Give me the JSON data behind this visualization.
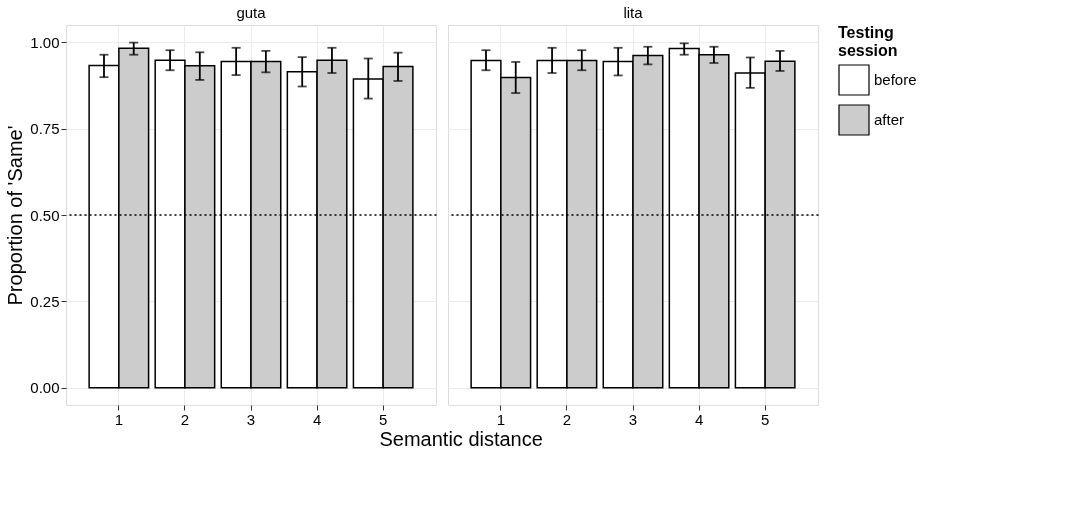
{
  "chart_data": [
    {
      "type": "bar",
      "title": "guta",
      "xlabel": "Semantic distance",
      "ylabel": "Proportion of 'Same'",
      "legend_title": "Testing session",
      "categories": [
        "1",
        "2",
        "3",
        "4",
        "5"
      ],
      "series": [
        {
          "name": "before",
          "color": "#ffffff",
          "values": [
            0.933,
            0.948,
            0.944,
            0.915,
            0.894
          ],
          "errors": [
            [
              0.899,
              0.964
            ],
            [
              0.919,
              0.977
            ],
            [
              0.905,
              0.984
            ],
            [
              0.872,
              0.957
            ],
            [
              0.837,
              0.953
            ]
          ]
        },
        {
          "name": "after",
          "color": "#cccccc",
          "values": [
            0.983,
            0.932,
            0.944,
            0.948,
            0.93
          ],
          "errors": [
            [
              0.964,
              0.999
            ],
            [
              0.891,
              0.971
            ],
            [
              0.913,
              0.975
            ],
            [
              0.911,
              0.984
            ],
            [
              0.888,
              0.97
            ]
          ]
        }
      ],
      "ylim": [
        -0.05,
        1.05
      ],
      "yticks": [
        {
          "value": 0,
          "label": "0.00"
        },
        {
          "value": 0.25,
          "label": "0.25"
        },
        {
          "value": 0.5,
          "label": "0.50"
        },
        {
          "value": 0.75,
          "label": "0.75"
        },
        {
          "value": 1,
          "label": "1.00"
        }
      ],
      "ref_lines": [
        {
          "axis": "y",
          "value": 0.5,
          "line_style": "dotted",
          "color": "#000000"
        }
      ],
      "grid": true,
      "legend": "right"
    },
    {
      "type": "bar",
      "title": "lita",
      "categories": [
        "1",
        "2",
        "3",
        "4",
        "5"
      ],
      "series": [
        {
          "name": "before",
          "color": "#ffffff",
          "values": [
            0.947,
            0.947,
            0.944,
            0.982,
            0.911
          ],
          "errors": [
            [
              0.919,
              0.977
            ],
            [
              0.911,
              0.984
            ],
            [
              0.904,
              0.984
            ],
            [
              0.964,
              0.997
            ],
            [
              0.868,
              0.956
            ]
          ]
        },
        {
          "name": "after",
          "color": "#cccccc",
          "values": [
            0.898,
            0.947,
            0.962,
            0.964,
            0.945
          ],
          "errors": [
            [
              0.853,
              0.943
            ],
            [
              0.919,
              0.977
            ],
            [
              0.936,
              0.987
            ],
            [
              0.94,
              0.987
            ],
            [
              0.917,
              0.975
            ]
          ]
        }
      ],
      "ylim": [
        -0.05,
        1.05
      ],
      "yticks": [
        0,
        0.25,
        0.5,
        0.75,
        1
      ],
      "ref_lines": [
        {
          "axis": "y",
          "value": 0.5,
          "line_style": "dotted",
          "color": "#000000"
        }
      ],
      "grid": true,
      "tick_labels": "x"
    }
  ]
}
